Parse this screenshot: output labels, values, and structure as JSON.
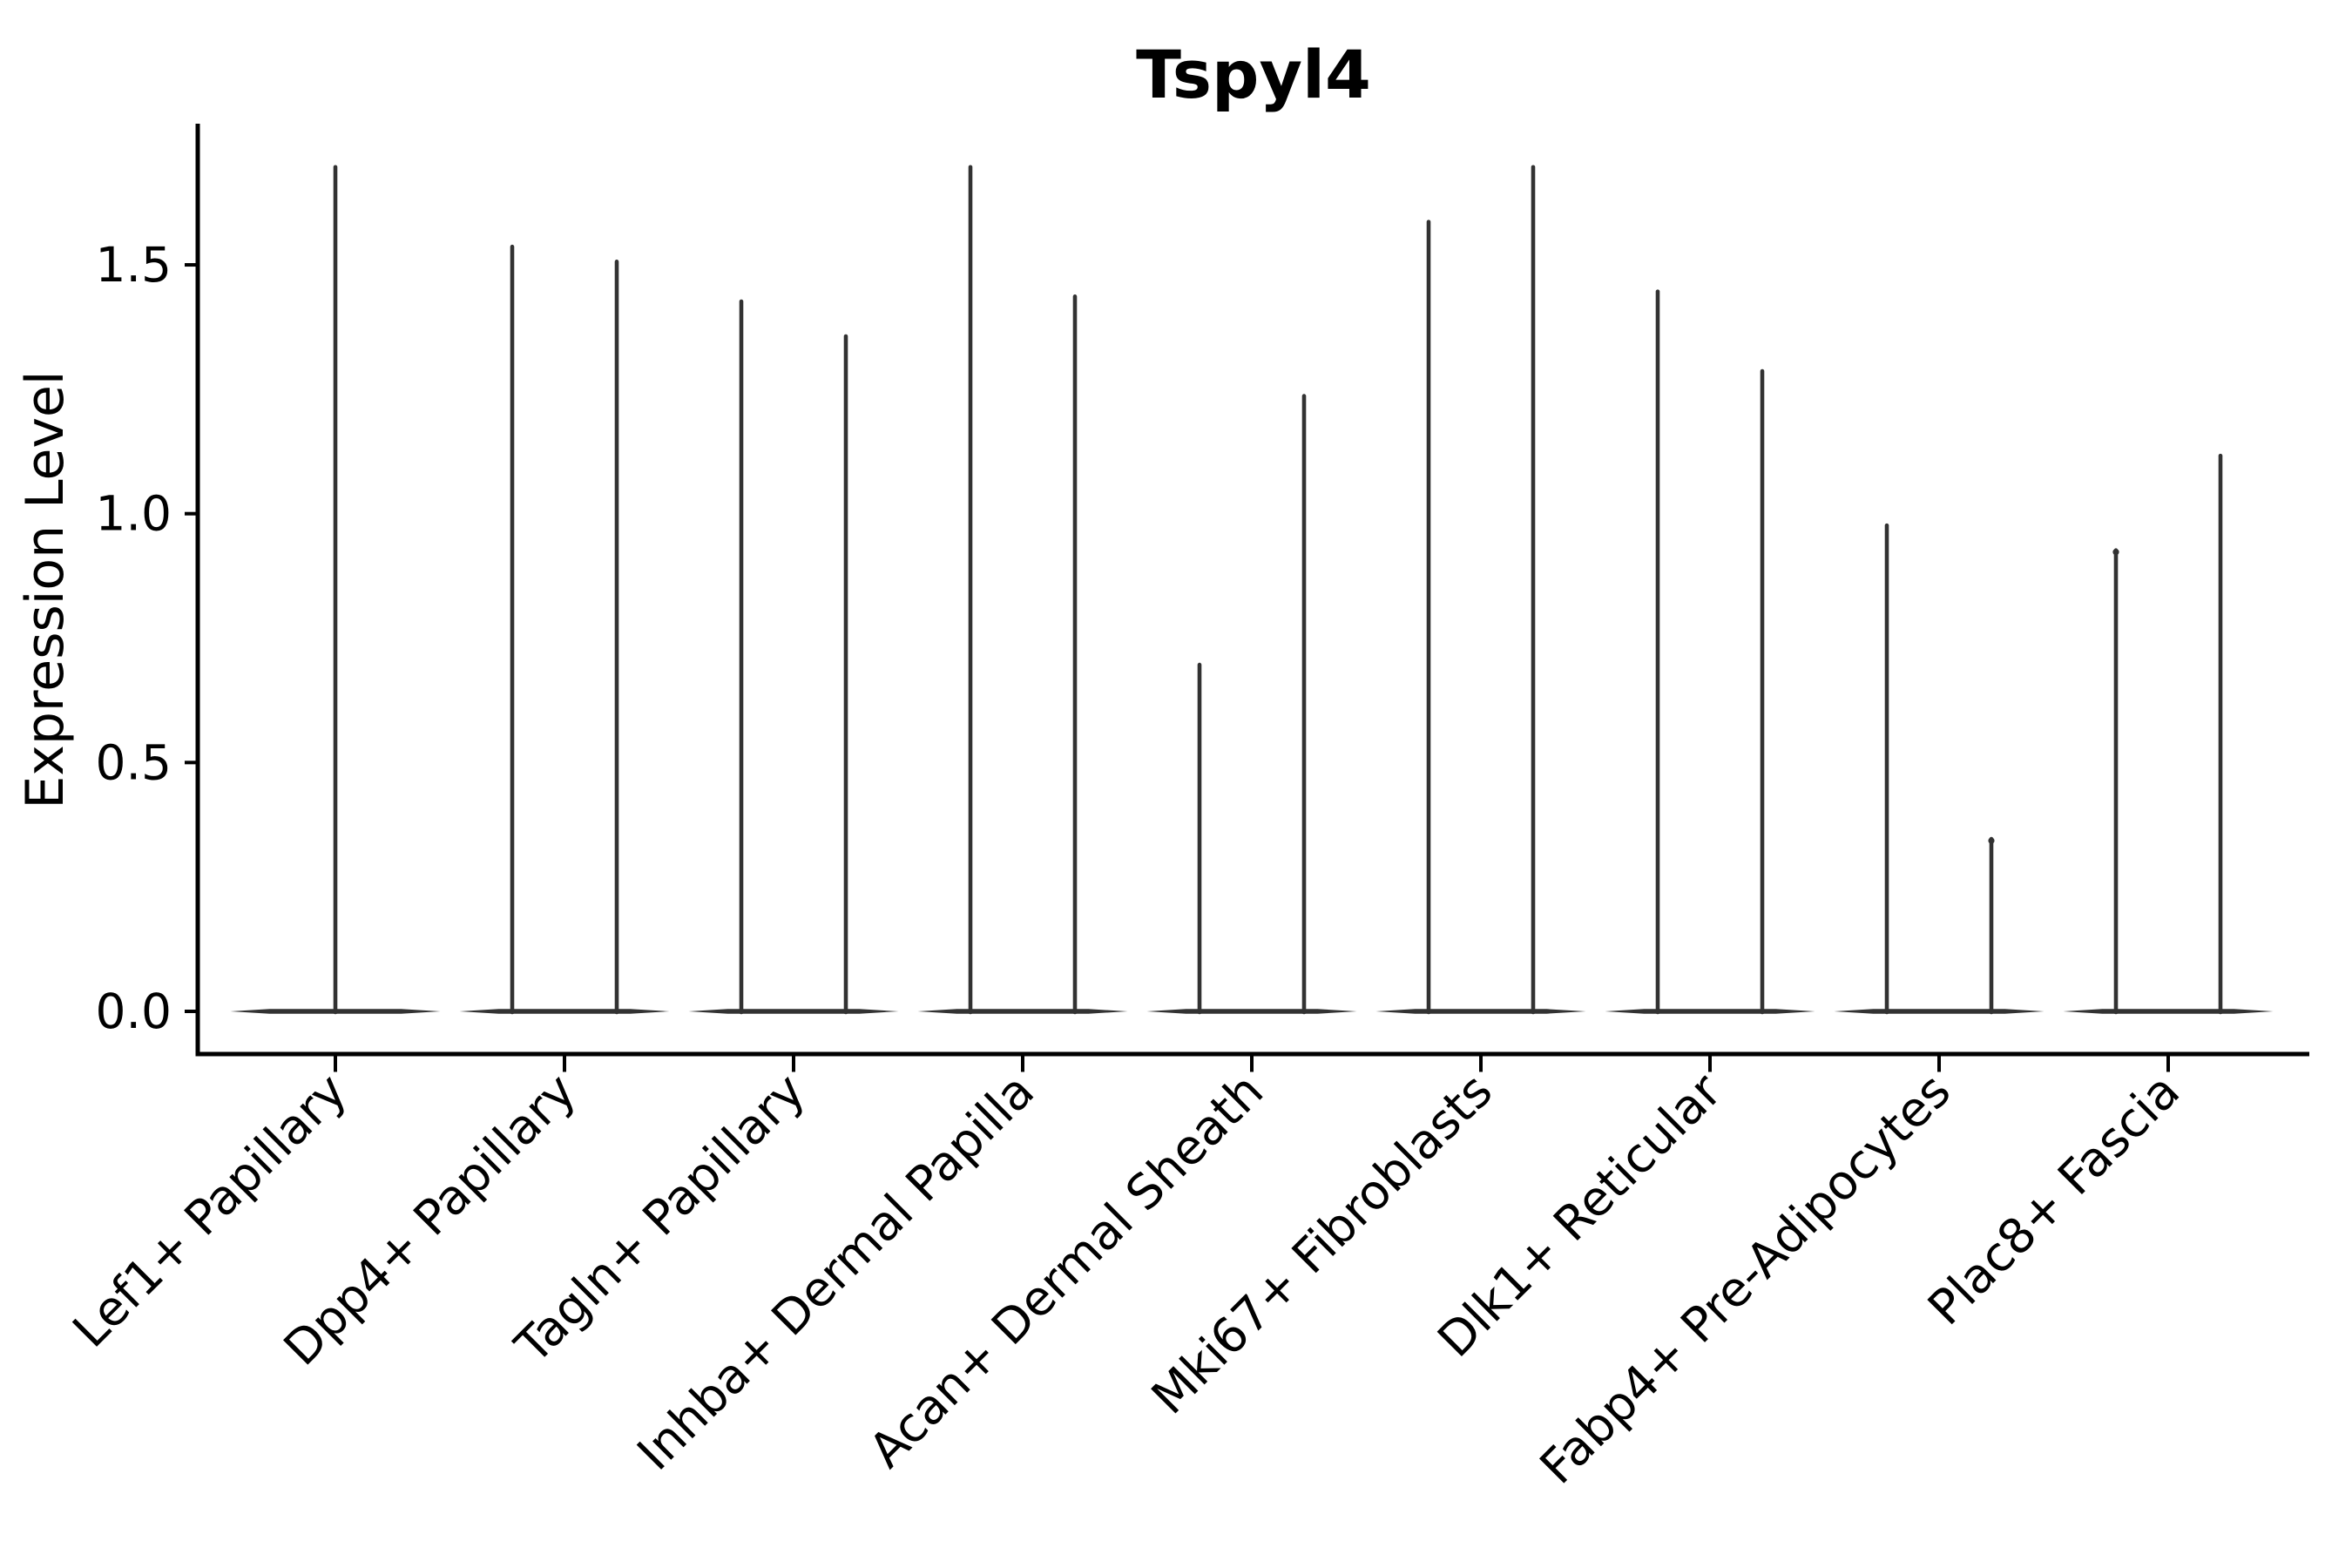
{
  "title": "Tspyl4",
  "y_axis": {
    "label": "Expression Level",
    "ticks": [
      {
        "label": "0.0",
        "value": 0.0
      },
      {
        "label": "0.5",
        "value": 0.5
      },
      {
        "label": "1.0",
        "value": 1.0
      },
      {
        "label": "1.5",
        "value": 1.5
      }
    ]
  },
  "colors": {
    "violin": "#323232",
    "axis": "#000000",
    "text": "#000000",
    "background": "#ffffff"
  },
  "chart_data": {
    "type": "violin",
    "title": "Tspyl4",
    "xlabel": "",
    "ylabel": "Expression Level",
    "ylim": [
      -0.09,
      1.78
    ],
    "yticks": [
      0.0,
      0.5,
      1.0,
      1.5
    ],
    "grid": false,
    "legend": "none",
    "description": "Gene expression violin plot; every violin collapses to a thin flat base at 0 with a narrow spike rising to its maximum expression value. First category has one centered violin, all others have two violins per category.",
    "categories": [
      "Lef1+ Papillary",
      "Dpp4+ Papillary",
      "Tagln+ Papillary",
      "Inhba+ Dermal Papilla",
      "Acan+ Dermal Sheath",
      "Mki67+ Fibroblasts",
      "Dlk1+ Reticular",
      "Fabp4+ Pre-Adipocytes",
      "Plac8+ Fascia"
    ],
    "violins_per_category": [
      {
        "category": "Lef1+ Papillary",
        "spike_max_values": [
          1.7
        ],
        "cap_bulge": [
          false
        ]
      },
      {
        "category": "Dpp4+ Papillary",
        "spike_max_values": [
          1.54,
          1.51
        ],
        "cap_bulge": [
          false,
          false
        ]
      },
      {
        "category": "Tagln+ Papillary",
        "spike_max_values": [
          1.43,
          1.36
        ],
        "cap_bulge": [
          false,
          false
        ]
      },
      {
        "category": "Inhba+ Dermal Papilla",
        "spike_max_values": [
          1.7,
          1.44
        ],
        "cap_bulge": [
          false,
          false
        ]
      },
      {
        "category": "Acan+ Dermal Sheath",
        "spike_max_values": [
          0.7,
          1.24
        ],
        "cap_bulge": [
          false,
          false
        ]
      },
      {
        "category": "Mki67+ Fibroblasts",
        "spike_max_values": [
          1.59,
          1.7
        ],
        "cap_bulge": [
          false,
          false
        ]
      },
      {
        "category": "Dlk1+ Reticular",
        "spike_max_values": [
          1.45,
          1.29
        ],
        "cap_bulge": [
          false,
          false
        ]
      },
      {
        "category": "Fabp4+ Pre-Adipocytes",
        "spike_max_values": [
          0.98,
          0.35
        ],
        "cap_bulge": [
          false,
          true
        ]
      },
      {
        "category": "Plac8+ Fascia",
        "spike_max_values": [
          0.93,
          1.12
        ],
        "cap_bulge": [
          true,
          false
        ]
      }
    ]
  }
}
